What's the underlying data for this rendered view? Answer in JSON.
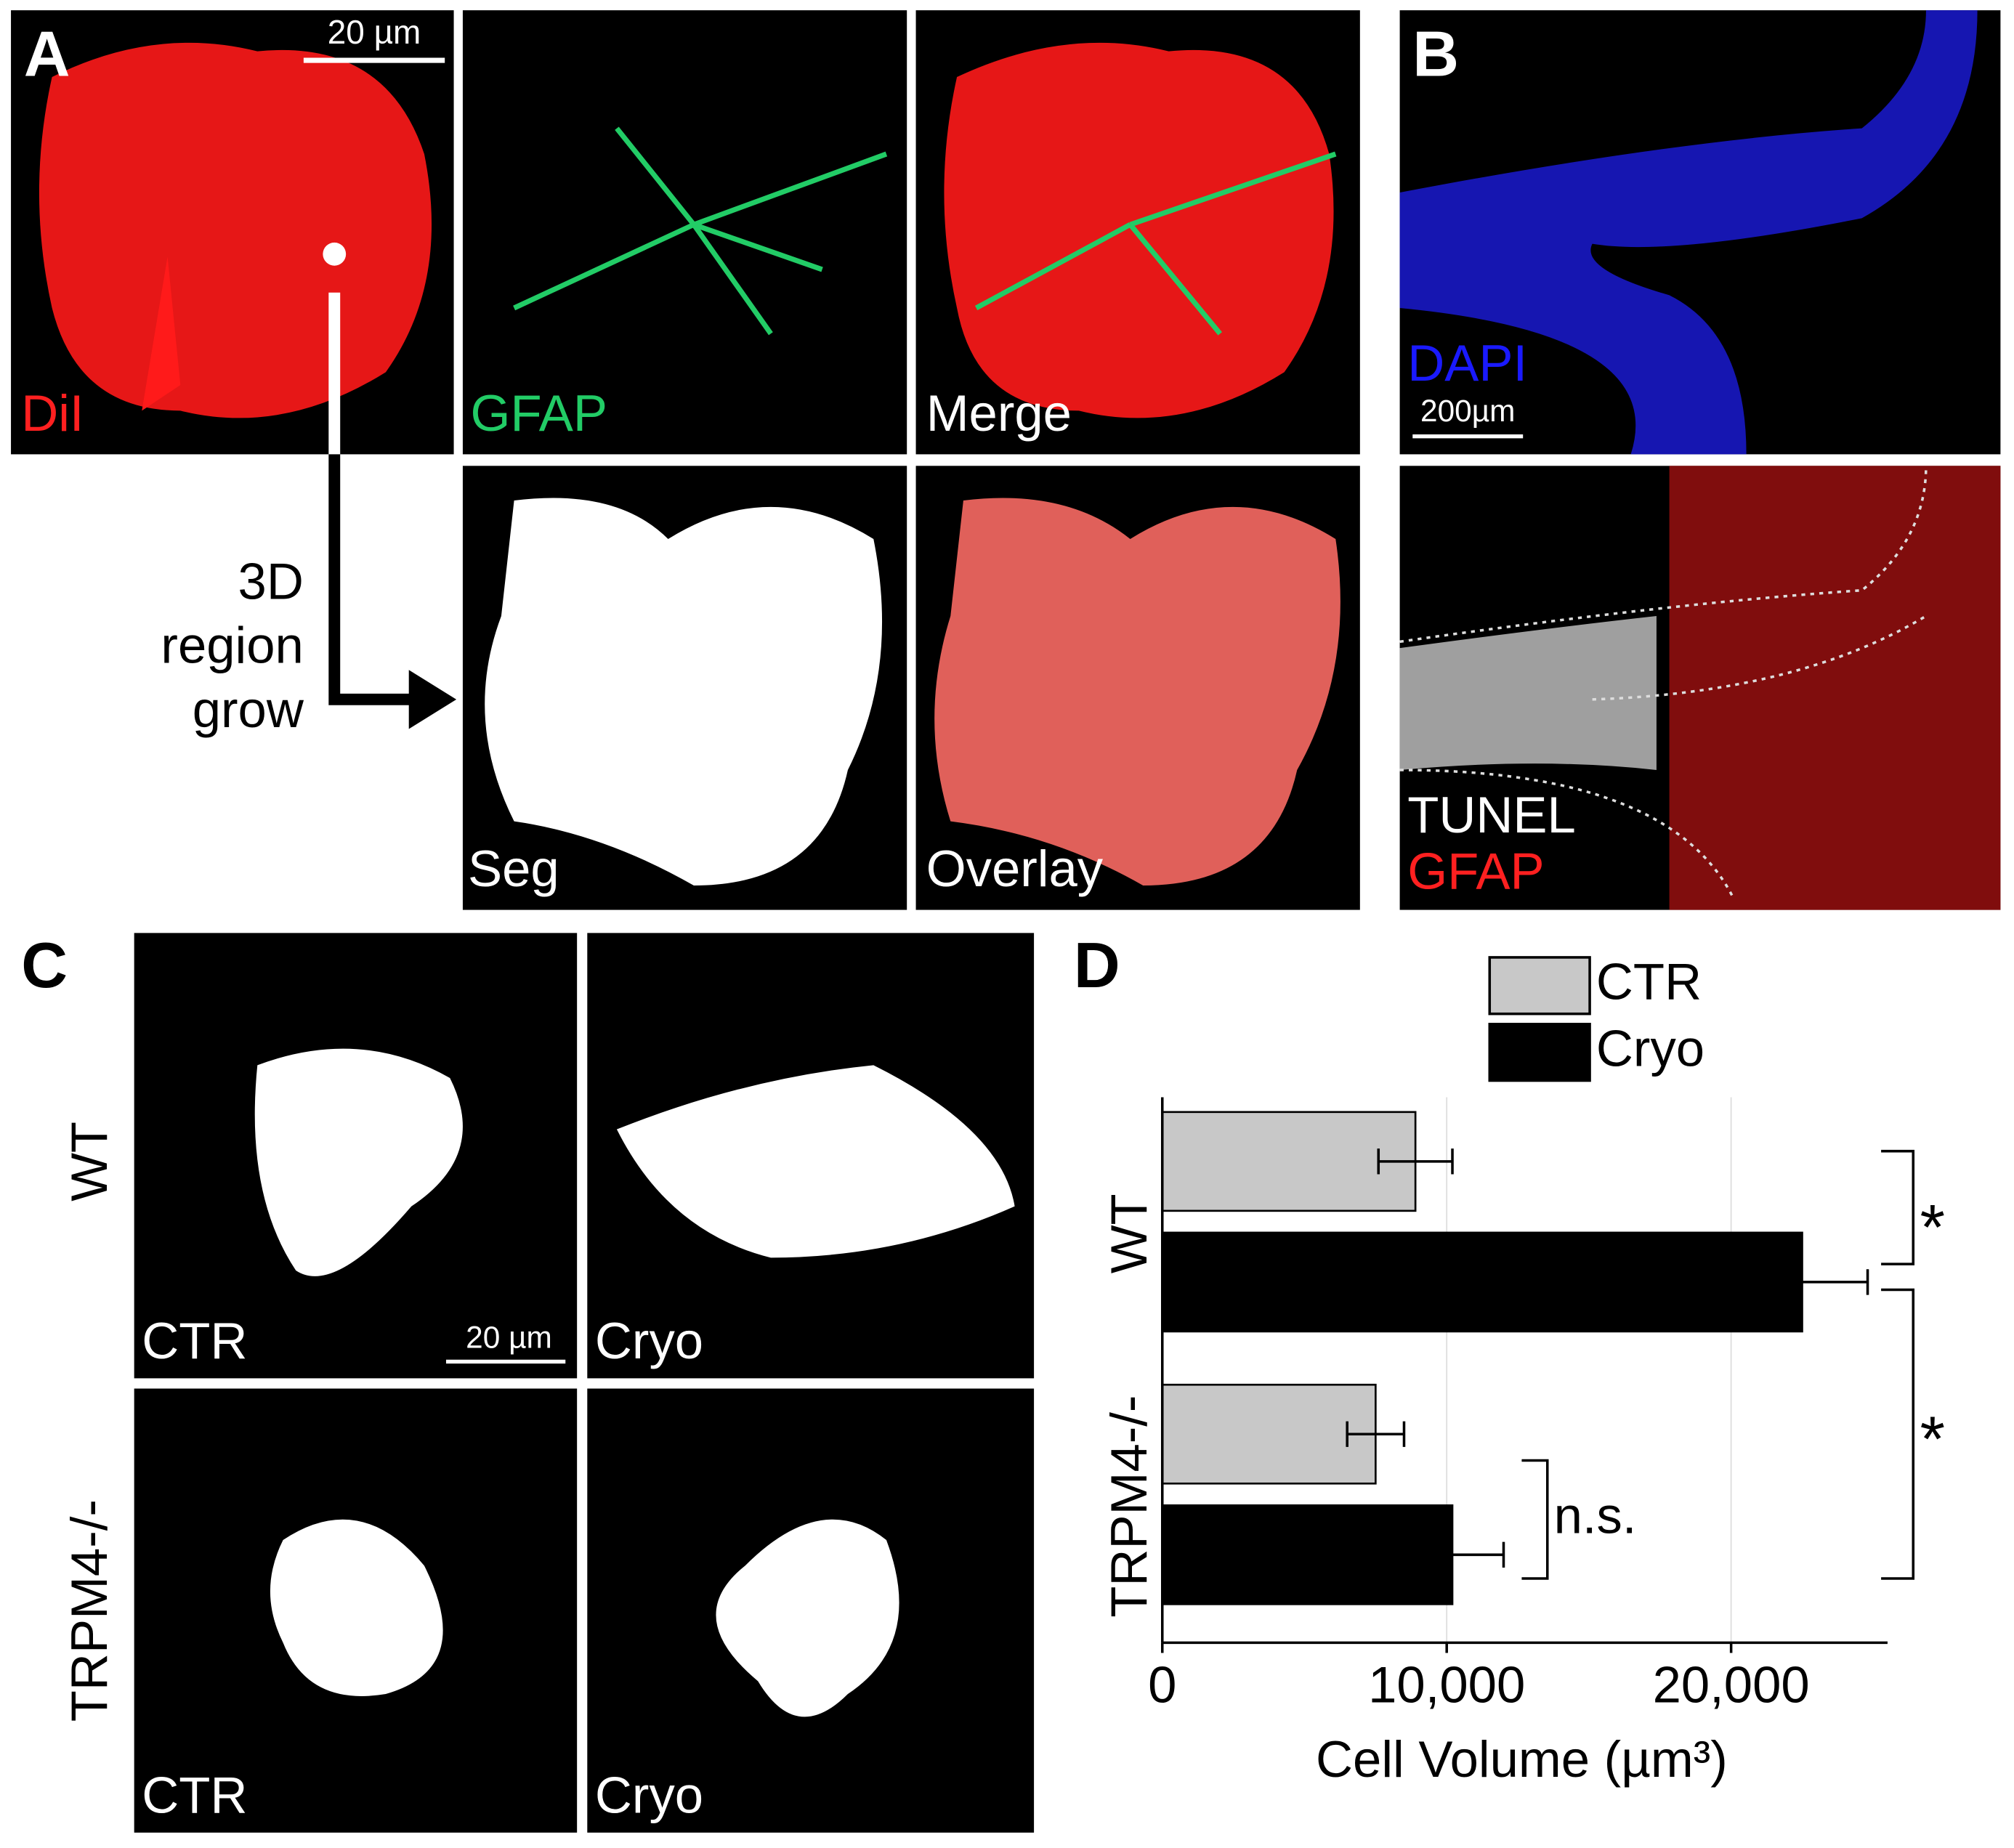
{
  "panels": {
    "A": {
      "label": "A",
      "scale_bar": "20 µm",
      "dil": "DiI",
      "gfap": "GFAP",
      "merge": "Merge",
      "process": [
        "3D",
        "region",
        "grow"
      ],
      "seg": "Seg",
      "overlay": "Overlay"
    },
    "B": {
      "label": "B",
      "dapi": "DAPI",
      "scale_bar": "200µm",
      "tunel": "TUNEL",
      "gfap": "GFAP"
    },
    "C": {
      "label": "C",
      "rows": [
        "WT",
        "TRPM4-/-"
      ],
      "cells": [
        "CTR",
        "Cryo",
        "CTR",
        "Cryo"
      ],
      "scale_bar": "20 µm"
    },
    "D": {
      "label": "D"
    }
  },
  "chart_data": {
    "type": "hbar",
    "categories": [
      "WT",
      "TRPM4-/-"
    ],
    "series": [
      {
        "name": "CTR",
        "color": "#c8c8c8",
        "values": [
          8900,
          7500
        ],
        "errors": [
          1300,
          1000
        ]
      },
      {
        "name": "Cryo",
        "color": "#000000",
        "values": [
          22500,
          10200
        ],
        "errors": [
          2300,
          1800
        ]
      }
    ],
    "xlabel": "Cell Volume (µm³)",
    "xlim": [
      0,
      25500
    ],
    "xticks": [
      0,
      {
        "value": 10000,
        "label": "10,000"
      },
      {
        "value": 20000,
        "label": "20,000"
      }
    ],
    "grid": true,
    "annotations": [
      "*",
      "*",
      "n.s."
    ]
  }
}
